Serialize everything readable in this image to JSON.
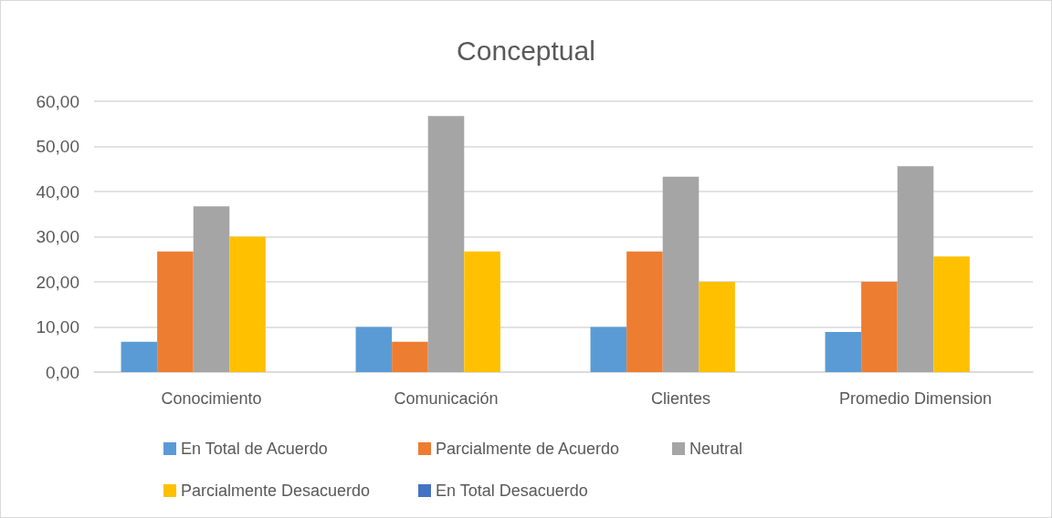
{
  "chart_data": {
    "type": "bar",
    "title": "Conceptual",
    "categories": [
      "Conocimiento",
      "Comunicación",
      "Clientes",
      "Promedio Dimension"
    ],
    "series": [
      {
        "name": "En Total de Acuerdo",
        "color": "#5b9bd5",
        "values": [
          6.7,
          10,
          10,
          8.9
        ]
      },
      {
        "name": "Parcialmente de Acuerdo",
        "color": "#ed7d31",
        "values": [
          26.7,
          6.7,
          26.7,
          20
        ]
      },
      {
        "name": "Neutral",
        "color": "#a5a5a5",
        "values": [
          36.7,
          56.7,
          43.3,
          45.6
        ]
      },
      {
        "name": "Parcialmente Desacuerdo",
        "color": "#ffc000",
        "values": [
          30,
          26.7,
          20,
          25.6
        ]
      },
      {
        "name": "En Total Desacuerdo",
        "color": "#4472c4",
        "values": [
          0,
          0,
          0,
          0
        ]
      }
    ],
    "ylim": [
      0,
      60
    ],
    "yticks": [
      {
        "value": 0,
        "label": "0,00"
      },
      {
        "value": 10,
        "label": "10,00"
      },
      {
        "value": 20,
        "label": "20,00"
      },
      {
        "value": 30,
        "label": "30,00"
      },
      {
        "value": 40,
        "label": "40,00"
      },
      {
        "value": 50,
        "label": "50,00"
      },
      {
        "value": 60,
        "label": "60,00"
      }
    ],
    "grid": "y",
    "legend": "bottom"
  }
}
